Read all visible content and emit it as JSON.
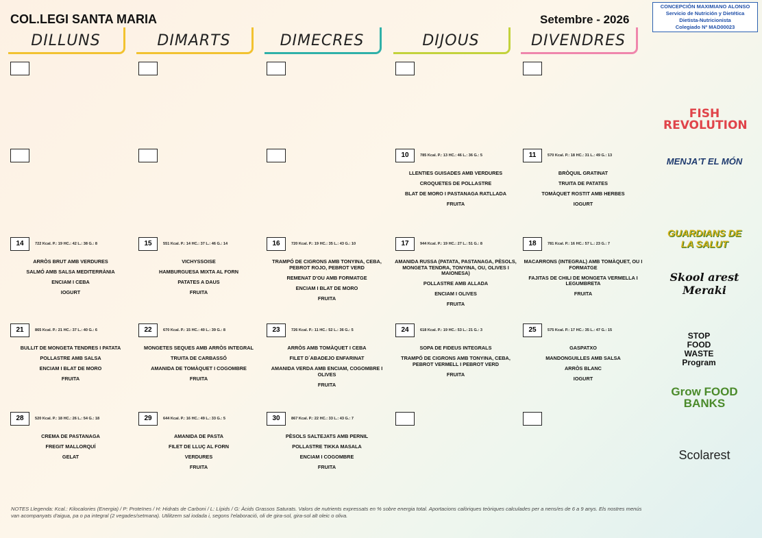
{
  "header": {
    "school": "COL.LEGI SANTA MARIA",
    "month": "Setembre - 2026",
    "nutritionist": [
      "CONCEPCIÓN MAXIMIANO ALONSO",
      "Servicio de Nutrición y Dietética",
      "Dietista-Nutricionista",
      "Colegiado Nº MAD00023"
    ]
  },
  "days": [
    "DILLUNS",
    "DIMARTS",
    "DIMECRES",
    "DIJOUS",
    "DIVENDRES"
  ],
  "weeks": [
    [
      null,
      null,
      null,
      null,
      null
    ],
    [
      null,
      null,
      null,
      {
        "day": 10,
        "nutrition": "785 Kcal. P.: 13 HC.: 46 L.: 36 G.: 5",
        "dishes": [
          "LLENTIES GUISADES AMB VERDURES",
          "CROQUETES DE POLLASTRE",
          "BLAT DE MORO I PASTANAGA RATLLADA",
          "FRUITA"
        ]
      },
      {
        "day": 11,
        "nutrition": "570 Kcal. P.: 18 HC.: 31 L.: 49 G.: 13",
        "dishes": [
          "BRÒQUIL GRATINAT",
          "TRUITA DE PATATES",
          "TOMÀQUET ROSTIT AMB HERBES",
          "IOGURT"
        ]
      }
    ],
    [
      {
        "day": 14,
        "nutrition": "722 Kcal. P.: 19 HC.: 42 L.: 38 G.: 8",
        "dishes": [
          "ARRÒS BRUT AMB VERDURES",
          "SALMÓ AMB SALSA MEDITERRÀNIA",
          "ENCIAM I CEBA",
          "IOGURT"
        ]
      },
      {
        "day": 15,
        "nutrition": "551 Kcal. P.: 14 HC.: 37 L.: 46 G.: 14",
        "dishes": [
          "VICHYSSOISE",
          "HAMBURGUESA MIXTA AL FORN",
          "PATATES A DAUS",
          "FRUITA"
        ]
      },
      {
        "day": 16,
        "nutrition": "720 Kcal. P.: 19 HC.: 35 L.: 43 G.: 10",
        "dishes": [
          "TRAMPÓ DE CIGRONS AMB TONYINA, CEBA, PEBROT ROJO, PEBROT VERD",
          "REMENAT D'OU AMB FORMATGE",
          "ENCIAM I BLAT DE MORO",
          "FRUITA"
        ]
      },
      {
        "day": 17,
        "nutrition": "944 Kcal. P.: 19 HC.: 27 L.: 51 G.: 8",
        "dishes": [
          "AMANIDA RUSSA (PATATA, PASTANAGA, PÈSOLS, MONGETA TENDRA, TONYINA, OU, OLIVES I MAIONESA)",
          "POLLASTRE AMB ALLADA",
          "ENCIAM I OLIVES",
          "FRUITA"
        ]
      },
      {
        "day": 18,
        "nutrition": "781 Kcal. P.: 16 HC.: 57 L.: 23 G.: 7",
        "dishes": [
          "MACARRONS (INTEGRAL) AMB TOMÀQUET, OU I FORMATGE",
          "FAJITAS DE CHILI DE MONGETA VERMELLA I LEGUMBRETA",
          "FRUITA"
        ]
      }
    ],
    [
      {
        "day": 21,
        "nutrition": "865 Kcal. P.: 21 HC.: 37 L.: 40 G.: 6",
        "dishes": [
          "BULLIT DE MONGETA TENDRES I PATATA",
          "POLLASTRE AMB SALSA",
          "ENCIAM I BLAT DE MORO",
          "FRUITA"
        ]
      },
      {
        "day": 22,
        "nutrition": "670 Kcal. P.: 15 HC.: 40 L.: 39 G.: 8",
        "dishes": [
          "MONGETES SEQUES AMB ARRÒS INTEGRAL",
          "TRUITA DE CARBASSÓ",
          "AMANIDA DE TOMÀQUET I COGOMBRE",
          "FRUITA"
        ]
      },
      {
        "day": 23,
        "nutrition": "726 Kcal. P.: 11 HC.: 52 L.: 36 G.: 5",
        "dishes": [
          "ARRÒS AMB TOMÀQUET I CEBA",
          "FILET D´ABADEJO ENFARINAT",
          "AMANIDA VERDA AMB ENCIAM, COGOMBRE I OLIVES",
          "FRUITA"
        ]
      },
      {
        "day": 24,
        "nutrition": "618 Kcal. P.: 19 HC.: 53 L.: 21 G.: 3",
        "dishes": [
          "SOPA DE FIDEUS INTEGRALS",
          "TRAMPÓ DE CIGRONS AMB TONYINA, CEBA, PEBROT VERMELL I PEBROT VERD",
          "FRUITA"
        ]
      },
      {
        "day": 25,
        "nutrition": "575 Kcal. P.: 17 HC.: 35 L.: 47 G.: 15",
        "dishes": [
          "GASPATXO",
          "MANDONGUILLES AMB SALSA",
          "ARRÒS BLANC",
          "IOGURT"
        ]
      }
    ],
    [
      {
        "day": 28,
        "nutrition": "520 Kcal. P.: 18 HC.: 26 L.: 54 G.: 18",
        "dishes": [
          "CREMA DE PASTANAGA",
          "FREGIT MALLORQUÍ",
          "GELAT"
        ]
      },
      {
        "day": 29,
        "nutrition": "644 Kcal. P.: 16 HC.: 49 L.: 33 G.: 5",
        "dishes": [
          "AMANIDA DE PASTA",
          "FILET DE LLUÇ AL FORN",
          "VERDURES",
          "FRUITA"
        ]
      },
      {
        "day": 30,
        "nutrition": "867 Kcal. P.: 22 HC.: 33 L.: 43 G.: 7",
        "dishes": [
          "PÈSOLS SALTEJATS AMB PERNIL",
          "POLLASTRE TIKKA MASALA",
          "ENCIAM I COGOMBRE",
          "FRUITA"
        ]
      },
      null,
      null
    ]
  ],
  "logos": [
    "FISH REVOLUTION",
    "MENJA'T EL MÓN",
    "GUARDIANS DE LA SALUT",
    "Skool arest Meraki",
    "STOP FOOD WASTE Program",
    "Grow FOOD BANKS",
    "Scolarest"
  ],
  "notes": "NOTES Llegenda: Kcal.: Kilocalories (Energia) / P: Proteïnes / H: Hidrats de Carboni / L: Lípids / G: Àcids Grassos Saturats. Valors de nutrients expressats en % sobre energia total. Aportacions calòriques teòriques calculades per a nens/es de 6 a 9 anys. Els nostres menús van acompanyats d'aigua, pa o pa integral (2 vegades/setmana). Utilitzem sal iodada i, segons l'elaboració, oli de gira-sol, gira-sol alt oleic o oliva."
}
